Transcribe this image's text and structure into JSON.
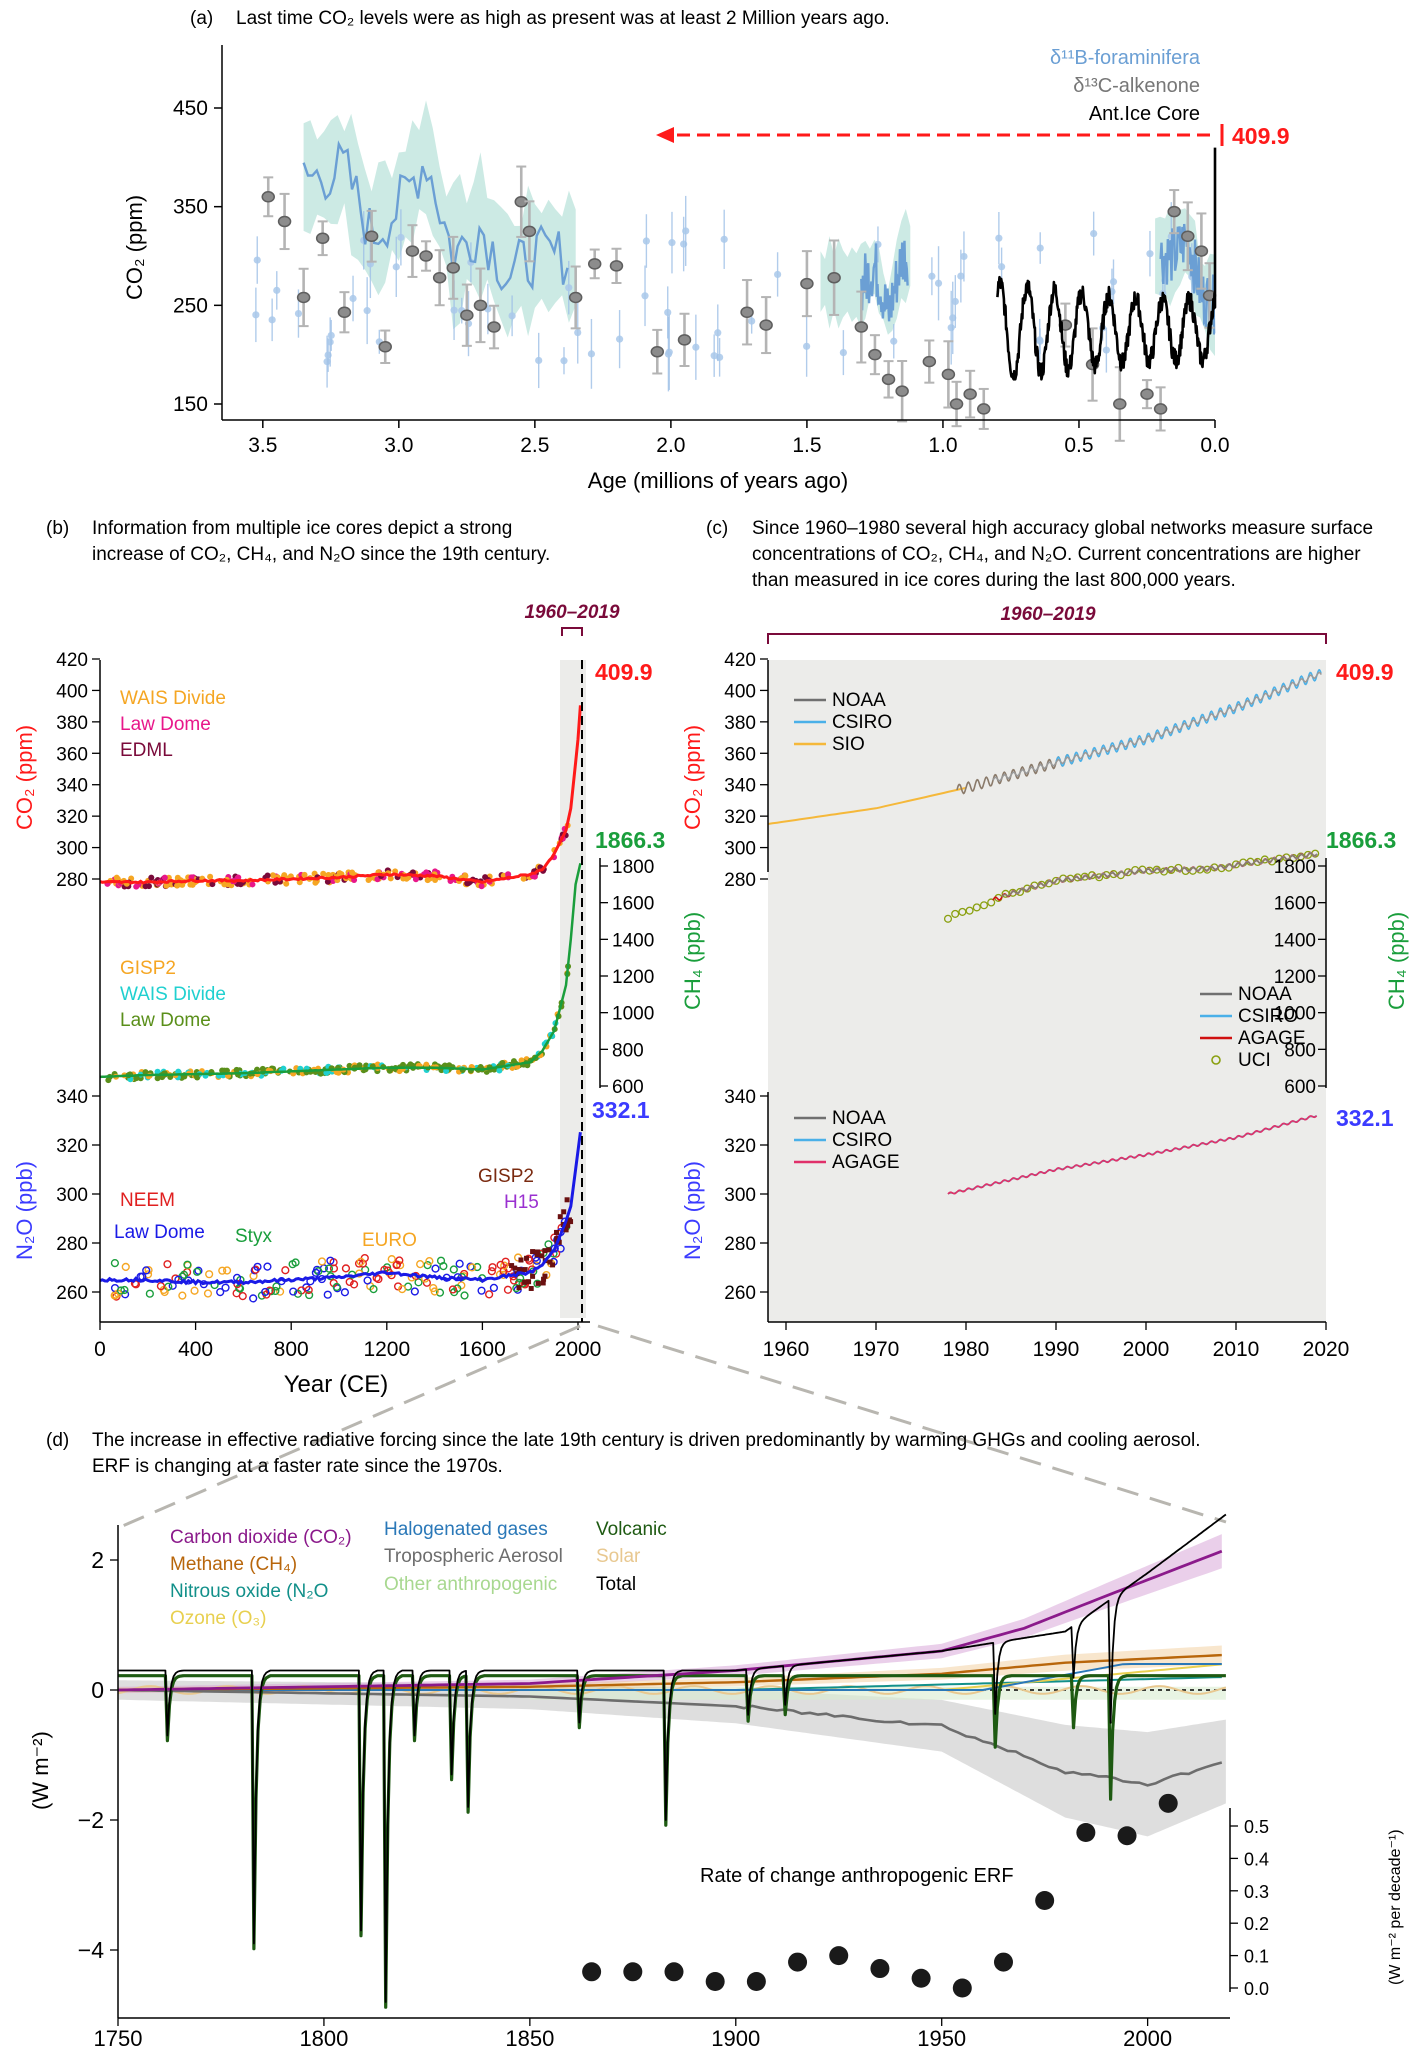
{
  "colors": {
    "red": "#ff1a1a",
    "green": "#1a9e3c",
    "blue": "#3b3bff",
    "maroon": "#7a0a3a",
    "boron": "#6b9fd4",
    "alkenone": "#8c8c8c",
    "shade": "#ececea"
  },
  "panels": {
    "a": {
      "label": "(a)",
      "caption": "Last time CO₂ levels were as high as present was at least 2 Million years ago.",
      "legend": [
        "δ¹¹B-foraminifera",
        "δ¹³C-alkenone",
        "Ant.Ice Core"
      ],
      "ylabel": "CO₂ (ppm)",
      "xlabel": "Age (millions of years ago)",
      "xticks": [
        "3.5",
        "3.0",
        "2.5",
        "2.0",
        "1.5",
        "1.0",
        "0.5",
        "0.0"
      ],
      "yticks": [
        "450",
        "350",
        "250",
        "150"
      ],
      "present": "409.9"
    },
    "b": {
      "label": "(b)",
      "caption_lines": [
        "Information from multiple ice cores depict a strong",
        "increase of CO₂, CH₄, and N₂O since the 19th century."
      ],
      "period": "1960–2019",
      "co2_label": "CO₂ (ppm)",
      "ch4_label": "CH₄ (ppb)",
      "n2o_label": "N₂O (ppb)",
      "co2_legend": [
        "WAIS Divide",
        "Law Dome",
        "EDML"
      ],
      "ch4_legend": [
        "GISP2",
        "WAIS Divide",
        "Law Dome"
      ],
      "n2o_legend": [
        "NEEM",
        "Law Dome",
        "Styx",
        "EURO",
        "GISP2",
        "H15"
      ],
      "co2_ticks": [
        "420",
        "400",
        "380",
        "360",
        "340",
        "320",
        "300",
        "280"
      ],
      "ch4_ticks": [
        "1800",
        "1600",
        "1400",
        "1200",
        "1000",
        "800",
        "600"
      ],
      "n2o_ticks": [
        "340",
        "320",
        "300",
        "280",
        "260"
      ],
      "xticks": [
        "0",
        "400",
        "800",
        "1200",
        "1600",
        "2000"
      ],
      "xlabel": "Year (CE)",
      "co2_value": "409.9",
      "ch4_value": "1866.3",
      "n2o_value": "332.1"
    },
    "c": {
      "label": "(c)",
      "caption_lines": [
        "Since 1960–1980 several high accuracy global networks measure surface",
        "concentrations of CO₂, CH₄, and N₂O. Current concentrations are higher",
        "than measured in ice cores during the last 800,000 years."
      ],
      "period": "1960–2019",
      "co2_legend": [
        "NOAA",
        "CSIRO",
        "SIO"
      ],
      "ch4_legend": [
        "NOAA",
        "CSIRO",
        "AGAGE",
        "UCI"
      ],
      "n2o_legend": [
        "NOAA",
        "CSIRO",
        "AGAGE"
      ],
      "xticks": [
        "1960",
        "1970",
        "1980",
        "1990",
        "2000",
        "2010",
        "2020"
      ]
    },
    "d": {
      "label": "(d)",
      "caption_lines": [
        "The increase in effective radiative forcing since the late 19th century is driven predominantly by warming GHGs and cooling aerosol.",
        "ERF is changing at a faster rate since the 1970s."
      ],
      "legend_col1": [
        "Carbon dioxide (CO₂)",
        "Methane (CH₄)",
        "Nitrous oxide (N₂O",
        "Ozone (O₃)"
      ],
      "legend_col2": [
        "Halogenated gases",
        "Tropospheric Aerosol",
        "Other anthropogenic"
      ],
      "legend_col3": [
        "Volcanic",
        "Solar",
        "Total"
      ],
      "ylabel": "(W m⁻²)",
      "yticks": [
        "2",
        "0",
        "−2",
        "−4"
      ],
      "xticks": [
        "1750",
        "1800",
        "1850",
        "1900",
        "1950",
        "2000"
      ],
      "rate_label": "Rate of change anthropogenic ERF",
      "rate_axis_label": "(W m⁻² per decade⁻¹)",
      "rate_ticks": [
        "0.5",
        "0.4",
        "0.3",
        "0.2",
        "0.1",
        "0.0"
      ]
    }
  },
  "chart_data": [
    {
      "type": "line",
      "panel": "a",
      "xlabel": "Age (millions of years ago)",
      "ylabel": "CO₂ (ppm)",
      "xlim": [
        3.65,
        0.0
      ],
      "ylim": [
        140,
        470
      ],
      "series": [
        {
          "name": "Ant.Ice Core",
          "x": [
            0.8,
            0.75,
            0.7,
            0.65,
            0.6,
            0.55,
            0.5,
            0.45,
            0.4,
            0.35,
            0.3,
            0.25,
            0.2,
            0.15,
            0.12,
            0.1,
            0.05,
            0.02,
            0.0
          ],
          "y": [
            200,
            255,
            205,
            250,
            190,
            270,
            185,
            250,
            180,
            285,
            190,
            280,
            190,
            260,
            280,
            200,
            240,
            185,
            280
          ]
        },
        {
          "name": "δ¹¹B-foraminifera",
          "x": [
            3.3,
            3.2,
            3.1,
            3.0,
            2.9,
            2.8,
            2.7,
            2.6,
            2.5,
            2.4,
            1.3,
            1.25,
            1.2,
            1.15,
            0.15,
            0.1,
            0.05,
            0.0
          ],
          "y": [
            380,
            390,
            320,
            350,
            400,
            300,
            330,
            280,
            300,
            300,
            270,
            290,
            240,
            300,
            300,
            320,
            260,
            250
          ]
        },
        {
          "name": "δ¹³C-alkenone",
          "x": [
            3.48,
            3.42,
            3.35,
            3.28,
            3.2,
            3.1,
            3.05,
            2.95,
            2.9,
            2.85,
            2.8,
            2.75,
            2.7,
            2.65,
            2.55,
            2.52,
            2.35,
            2.28,
            2.2,
            2.05,
            1.95,
            1.72,
            1.65,
            1.5,
            1.4,
            1.3,
            1.25,
            1.2,
            1.15,
            1.05,
            0.98,
            0.95,
            0.9,
            0.85,
            0.55,
            0.45,
            0.35,
            0.25,
            0.2,
            0.15,
            0.1,
            0.05,
            0.02
          ],
          "y": [
            360,
            335,
            258,
            318,
            243,
            320,
            208,
            305,
            300,
            278,
            288,
            240,
            250,
            228,
            355,
            325,
            258,
            292,
            290,
            203,
            215,
            243,
            230,
            272,
            278,
            228,
            200,
            175,
            163,
            193,
            180,
            150,
            160,
            145,
            230,
            190,
            150,
            160,
            145,
            345,
            320,
            305,
            260
          ]
        }
      ]
    },
    {
      "type": "line",
      "panel": "b",
      "xlabel": "Year (CE)",
      "xlim": [
        0,
        2020
      ],
      "series": [
        {
          "name": "CO₂ (ppm)",
          "x": [
            0,
            200,
            400,
            600,
            800,
            1000,
            1200,
            1400,
            1600,
            1800,
            1850,
            1900,
            1950,
            1970,
            1990,
            2000,
            2019
          ],
          "y": [
            278,
            278,
            279,
            279,
            280,
            281,
            283,
            282,
            278,
            283,
            286,
            296,
            311,
            325,
            354,
            369,
            409.9
          ]
        },
        {
          "name": "CH₄ (ppb)",
          "x": [
            0,
            200,
            400,
            600,
            800,
            1000,
            1200,
            1400,
            1600,
            1800,
            1850,
            1900,
            1950,
            1970,
            1990,
            2019
          ],
          "y": [
            650,
            660,
            665,
            670,
            680,
            690,
            700,
            700,
            690,
            730,
            790,
            900,
            1150,
            1400,
            1700,
            1866.3
          ]
        },
        {
          "name": "N₂O (ppb)",
          "x": [
            0,
            200,
            400,
            600,
            800,
            1000,
            1200,
            1400,
            1600,
            1800,
            1850,
            1900,
            1950,
            1970,
            1990,
            2019
          ],
          "y": [
            265,
            265,
            264,
            264,
            265,
            266,
            268,
            266,
            265,
            268,
            271,
            277,
            289,
            295,
            310,
            332.1
          ]
        }
      ]
    },
    {
      "type": "line",
      "panel": "c",
      "xlim": [
        1958,
        2020
      ],
      "series": [
        {
          "name": "CO₂ (ppm)",
          "x": [
            1958,
            1970,
            1980,
            1990,
            2000,
            2010,
            2019
          ],
          "y": [
            315,
            325,
            338,
            354,
            369,
            389,
            409.9
          ]
        },
        {
          "name": "CH₄ (ppb)",
          "x": [
            1978,
            1985,
            1990,
            2000,
            2007,
            2019
          ],
          "y": [
            1520,
            1650,
            1720,
            1775,
            1785,
            1866.3
          ]
        },
        {
          "name": "N₂O (ppb)",
          "x": [
            1978,
            1990,
            2000,
            2010,
            2019
          ],
          "y": [
            300,
            310,
            316,
            323,
            332.1
          ]
        }
      ]
    },
    {
      "type": "line",
      "panel": "d",
      "ylabel": "(W m⁻²)",
      "xlim": [
        1750,
        2020
      ],
      "ylim": [
        -4.9,
        3.0
      ],
      "series": [
        {
          "name": "Carbon dioxide (CO₂)",
          "x": [
            1750,
            1800,
            1850,
            1900,
            1950,
            1970,
            1990,
            2019
          ],
          "y": [
            0,
            0.05,
            0.1,
            0.3,
            0.6,
            0.95,
            1.45,
            2.16
          ]
        },
        {
          "name": "Methane (CH₄)",
          "x": [
            1750,
            1850,
            1900,
            1950,
            1980,
            2019
          ],
          "y": [
            0,
            0.05,
            0.12,
            0.25,
            0.42,
            0.54
          ]
        },
        {
          "name": "Tropospheric Aerosol",
          "x": [
            1750,
            1850,
            1900,
            1950,
            1980,
            2000,
            2019
          ],
          "y": [
            0,
            -0.1,
            -0.25,
            -0.55,
            -1.25,
            -1.45,
            -1.1
          ]
        },
        {
          "name": "Total",
          "x": [
            1750,
            1850,
            1900,
            1950,
            1980,
            2000,
            2019
          ],
          "y": [
            0.3,
            0.3,
            0.3,
            0.6,
            0.9,
            1.8,
            2.7
          ]
        }
      ]
    },
    {
      "type": "scatter",
      "panel": "d-rate",
      "name": "Rate of change anthropogenic ERF",
      "x": [
        1865,
        1875,
        1885,
        1895,
        1905,
        1915,
        1925,
        1935,
        1945,
        1955,
        1965,
        1975,
        1985,
        1995,
        2005
      ],
      "y": [
        0.05,
        0.05,
        0.05,
        0.02,
        0.02,
        0.08,
        0.1,
        0.06,
        0.03,
        0.0,
        0.08,
        0.27,
        0.48,
        0.47,
        0.57
      ],
      "ylim": [
        0.0,
        0.55
      ]
    }
  ]
}
